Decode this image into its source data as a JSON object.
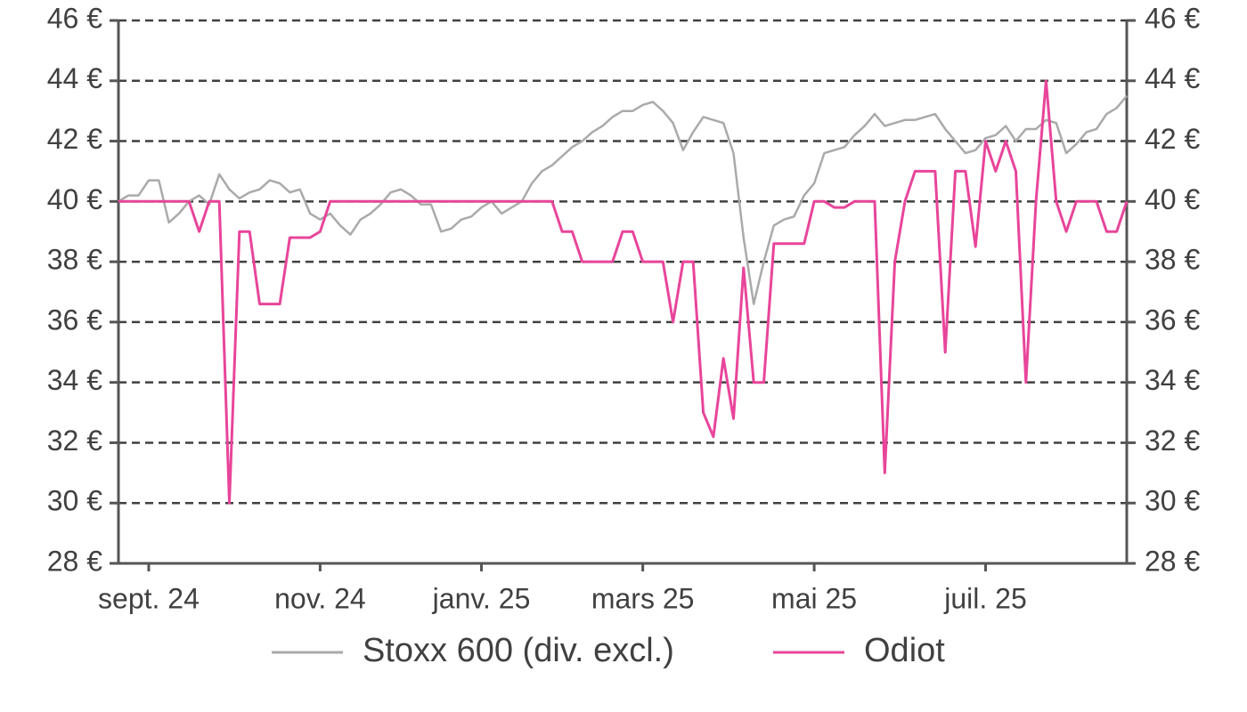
{
  "chart_data": {
    "type": "line",
    "categories": [
      null,
      null,
      null,
      "sept. 24",
      null,
      null,
      null,
      null,
      null,
      null,
      null,
      null,
      null,
      null,
      null,
      null,
      null,
      null,
      null,
      null,
      "nov. 24",
      null,
      null,
      null,
      null,
      null,
      null,
      null,
      null,
      null,
      null,
      null,
      null,
      null,
      null,
      null,
      "janv. 25",
      null,
      null,
      null,
      null,
      null,
      null,
      null,
      null,
      null,
      null,
      null,
      null,
      null,
      null,
      null,
      "mars 25",
      null,
      null,
      null,
      null,
      null,
      null,
      null,
      null,
      null,
      null,
      null,
      null,
      null,
      null,
      null,
      null,
      "mai 25",
      null,
      null,
      null,
      null,
      null,
      null,
      null,
      null,
      null,
      null,
      null,
      null,
      null,
      null,
      null,
      null,
      "juil. 25",
      null,
      null,
      null,
      null,
      null,
      null,
      null,
      null,
      null,
      null,
      null,
      null,
      null,
      null
    ],
    "series": [
      {
        "name": "Stoxx 600 (div. excl.)",
        "color": "#aaaaaa",
        "values": [
          40.0,
          40.2,
          40.2,
          40.7,
          40.7,
          39.3,
          39.6,
          40.0,
          40.2,
          39.9,
          40.9,
          40.4,
          40.1,
          40.3,
          40.4,
          40.7,
          40.6,
          40.3,
          40.4,
          39.6,
          39.4,
          39.6,
          39.2,
          38.9,
          39.4,
          39.6,
          39.9,
          40.3,
          40.4,
          40.2,
          39.9,
          39.9,
          39.0,
          39.1,
          39.4,
          39.5,
          39.8,
          40.0,
          39.6,
          39.8,
          40.0,
          40.6,
          41.0,
          41.2,
          41.5,
          41.8,
          42.0,
          42.3,
          42.5,
          42.8,
          43.0,
          43.0,
          43.2,
          43.3,
          43.0,
          42.6,
          41.7,
          42.3,
          42.8,
          42.7,
          42.6,
          41.6,
          38.8,
          36.6,
          38.0,
          39.2,
          39.4,
          39.5,
          40.2,
          40.6,
          41.6,
          41.7,
          41.8,
          42.2,
          42.5,
          42.9,
          42.5,
          42.6,
          42.7,
          42.7,
          42.8,
          42.9,
          42.4,
          42.0,
          41.6,
          41.7,
          42.1,
          42.2,
          42.5,
          42.0,
          42.4,
          42.4,
          42.7,
          42.6,
          41.6,
          41.9,
          42.3,
          42.4,
          42.9,
          43.1,
          43.5
        ]
      },
      {
        "name": "Odiot",
        "color": "#e8459a",
        "values": [
          40,
          40,
          40,
          40,
          40,
          40,
          40,
          40,
          39,
          40,
          40,
          30,
          39,
          39,
          36.6,
          36.6,
          36.6,
          38.8,
          38.8,
          38.8,
          39,
          40,
          40,
          40,
          40,
          40,
          40,
          40,
          40,
          40,
          40,
          40,
          40,
          40,
          40,
          40,
          40,
          40,
          40,
          40,
          40,
          40,
          40,
          40,
          39,
          39,
          38,
          38,
          38,
          38,
          39,
          39,
          38,
          38,
          38,
          36,
          38,
          38,
          33,
          32.2,
          34.8,
          32.8,
          37.8,
          34,
          34,
          38.6,
          38.6,
          38.6,
          38.6,
          40,
          40,
          39.8,
          39.8,
          40,
          40,
          40,
          31,
          38,
          40,
          41,
          41,
          41,
          35,
          41,
          41,
          38.5,
          42,
          41,
          42,
          41,
          34,
          40,
          44,
          40,
          39,
          40,
          40,
          40,
          39,
          39,
          40
        ]
      }
    ],
    "ylim": [
      28,
      46
    ],
    "yticks": [
      {
        "value": 28,
        "label": "28 €"
      },
      {
        "value": 30,
        "label": "30 €"
      },
      {
        "value": 32,
        "label": "32 €"
      },
      {
        "value": 34,
        "label": "34 €"
      },
      {
        "value": 36,
        "label": "36 €"
      },
      {
        "value": 38,
        "label": "38 €"
      },
      {
        "value": 40,
        "label": "40 €"
      },
      {
        "value": 42,
        "label": "42 €"
      },
      {
        "value": 44,
        "label": "44 €"
      },
      {
        "value": 46,
        "label": "46 €"
      }
    ],
    "y2lim": [
      28,
      46
    ],
    "y2ticks": [
      {
        "value": 28,
        "label": "28 €"
      },
      {
        "value": 30,
        "label": "30 €"
      },
      {
        "value": 32,
        "label": "32 €"
      },
      {
        "value": 34,
        "label": "34 €"
      },
      {
        "value": 36,
        "label": "36 €"
      },
      {
        "value": 38,
        "label": "38 €"
      },
      {
        "value": 40,
        "label": "40 €"
      },
      {
        "value": 42,
        "label": "42 €"
      },
      {
        "value": 44,
        "label": "44 €"
      },
      {
        "value": 46,
        "label": "46 €"
      }
    ],
    "grid": true,
    "legend": "bottom"
  }
}
